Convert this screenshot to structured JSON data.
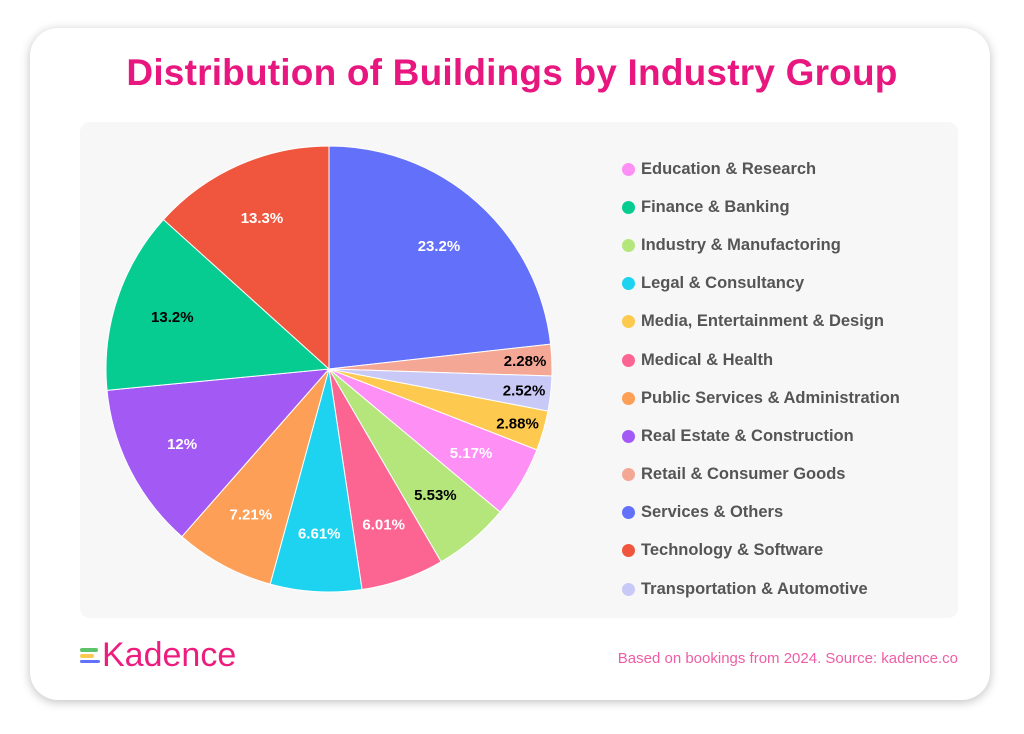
{
  "title": "Distribution of Buildings by Industry Group",
  "footer": {
    "logo": "Kadence",
    "source": "Based on bookings from 2024. Source: kadence.co"
  },
  "chart_data": {
    "type": "pie",
    "title": "Distribution of Buildings by Industry Group",
    "legend_position": "right",
    "slices": [
      {
        "name": "Services & Others",
        "value": 23.2,
        "label": "23.2%",
        "color": "#6370fa",
        "label_color": "#ffffff"
      },
      {
        "name": "Retail & Consumer Goods",
        "value": 2.28,
        "label": "2.28%",
        "color": "#f5a796",
        "label_color": "#000000"
      },
      {
        "name": "Transportation & Automotive",
        "value": 2.52,
        "label": "2.52%",
        "color": "#c9c9f8",
        "label_color": "#000000"
      },
      {
        "name": "Media, Entertainment & Design",
        "value": 2.88,
        "label": "2.88%",
        "color": "#fdc94f",
        "label_color": "#000000"
      },
      {
        "name": "Education & Research",
        "value": 5.17,
        "label": "5.17%",
        "color": "#fd8ff5",
        "label_color": "#ffffff"
      },
      {
        "name": "Industry & Manufactoring",
        "value": 5.53,
        "label": "5.53%",
        "color": "#b5e67c",
        "label_color": "#000000"
      },
      {
        "name": "Medical & Health",
        "value": 6.01,
        "label": "6.01%",
        "color": "#fc6592",
        "label_color": "#ffffff"
      },
      {
        "name": "Legal & Consultancy",
        "value": 6.61,
        "label": "6.61%",
        "color": "#1dd3ef",
        "label_color": "#ffffff"
      },
      {
        "name": "Public Services & Administration",
        "value": 7.21,
        "label": "7.21%",
        "color": "#fd9f57",
        "label_color": "#ffffff"
      },
      {
        "name": "Real Estate & Construction",
        "value": 12,
        "label": "12%",
        "color": "#a35af5",
        "label_color": "#ffffff"
      },
      {
        "name": "Finance & Banking",
        "value": 13.2,
        "label": "13.2%",
        "color": "#06cc92",
        "label_color": "#000000"
      },
      {
        "name": "Technology & Software",
        "value": 13.3,
        "label": "13.3%",
        "color": "#ef563d",
        "label_color": "#ffffff"
      }
    ],
    "legend": [
      "Education & Research",
      "Finance & Banking",
      "Industry & Manufactoring",
      "Legal & Consultancy",
      "Media, Entertainment & Design",
      "Medical & Health",
      "Public Services & Administration",
      "Real Estate & Construction",
      "Retail & Consumer Goods",
      "Services & Others",
      "Technology & Software",
      "Transportation & Automotive"
    ]
  }
}
